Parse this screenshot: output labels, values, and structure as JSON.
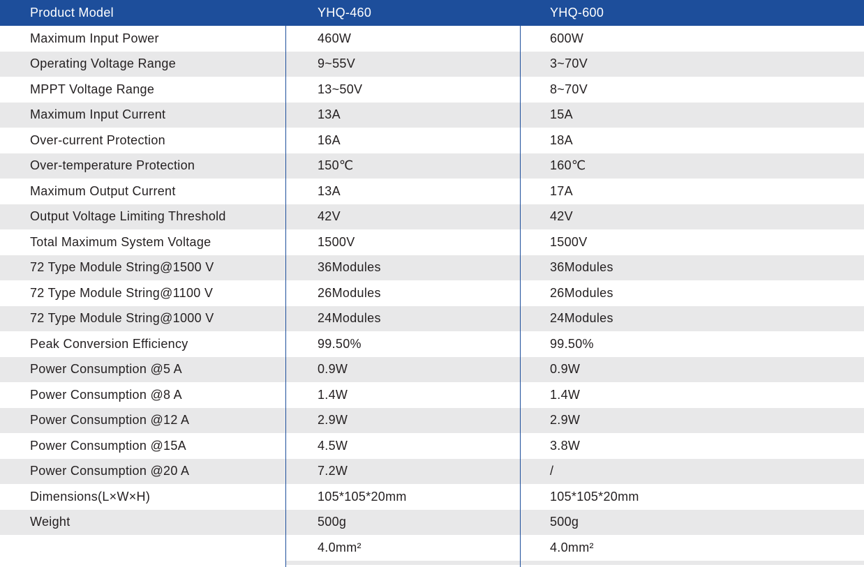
{
  "table": {
    "header": [
      "Product Model",
      "YHQ-460",
      "YHQ-600"
    ],
    "rows": [
      [
        "Maximum Input Power",
        "460W",
        "600W"
      ],
      [
        "Operating Voltage Range",
        "9~55V",
        "3~70V"
      ],
      [
        "MPPT Voltage Range",
        "13~50V",
        "8~70V"
      ],
      [
        "Maximum Input Current",
        "13A",
        "15A"
      ],
      [
        "Over-current Protection",
        "16A",
        "18A"
      ],
      [
        "Over-temperature Protection",
        "150℃",
        "160℃"
      ],
      [
        "Maximum Output Current",
        "13A",
        "17A"
      ],
      [
        "Output Voltage Limiting Threshold",
        "42V",
        "42V"
      ],
      [
        "Total Maximum System Voltage",
        "1500V",
        "1500V"
      ],
      [
        "72 Type Module String@1500 V",
        "36Modules",
        "36Modules"
      ],
      [
        "72 Type Module String@1100 V",
        "26Modules",
        "26Modules"
      ],
      [
        "72 Type Module String@1000 V",
        "24Modules",
        "24Modules"
      ],
      [
        "Peak Conversion Efficiency",
        "99.50%",
        "99.50%"
      ],
      [
        "Power Consumption @5 A",
        "0.9W",
        "0.9W"
      ],
      [
        "Power Consumption @8 A",
        "1.4W",
        "1.4W"
      ],
      [
        "Power Consumption @12 A",
        "2.9W",
        "2.9W"
      ],
      [
        "Power Consumption @15A",
        "4.5W",
        "3.8W"
      ],
      [
        "Power Consumption @20 A",
        "7.2W",
        "/"
      ],
      [
        "Dimensions(L×W×H)",
        "105*105*20mm",
        "105*105*20mm"
      ],
      [
        "Weight",
        "500g",
        "500g"
      ],
      [
        "",
        "4.0mm²",
        "4.0mm²"
      ]
    ]
  },
  "colors": {
    "header_bg": "#1d4e9b",
    "stripe": "#e8e8e9",
    "text": "#231f20"
  }
}
